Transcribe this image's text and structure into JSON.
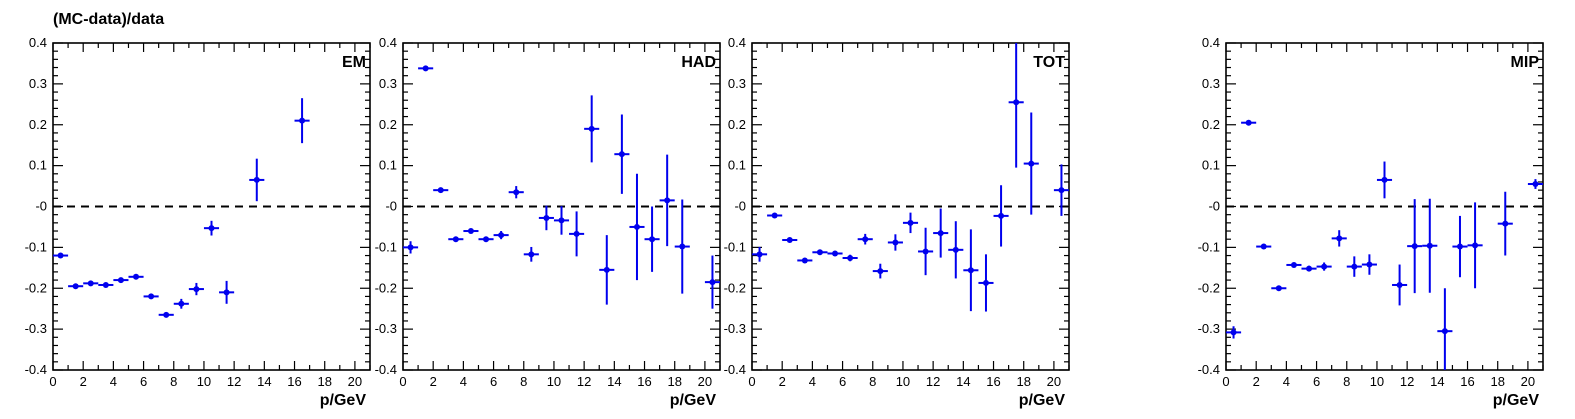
{
  "figure": {
    "ylabel": "(MC-data)/data"
  },
  "chart_data": [
    {
      "type": "scatter",
      "title": "EM",
      "xlabel": "p/GeV",
      "ylabel": "(MC-data)/data",
      "xlim": [
        0,
        21
      ],
      "ylim": [
        -0.4,
        0.4
      ],
      "xticks": [
        0,
        2,
        4,
        6,
        8,
        10,
        12,
        14,
        16,
        18,
        20
      ],
      "yticks": [
        -0.4,
        -0.3,
        -0.2,
        -0.1,
        0,
        0.1,
        0.2,
        0.3,
        0.4
      ],
      "ytick_labels": [
        "-0.4",
        "-0.3",
        "-0.2",
        "-0.1",
        "-0",
        "0.1",
        "0.2",
        "0.3",
        "0.4"
      ],
      "reference_line": 0,
      "marker_color": "#0000ee",
      "x": [
        0.5,
        1.5,
        2.5,
        3.5,
        4.5,
        5.5,
        6.5,
        7.5,
        8.5,
        9.5,
        10.5,
        11.5,
        13.5,
        16.5
      ],
      "y": [
        -0.12,
        -0.195,
        -0.188,
        -0.192,
        -0.18,
        -0.172,
        -0.22,
        -0.265,
        -0.238,
        -0.202,
        -0.053,
        -0.21,
        0.065,
        0.21
      ],
      "yerr": [
        0.005,
        0.004,
        0.004,
        0.004,
        0.004,
        0.005,
        0.006,
        0.006,
        0.012,
        0.015,
        0.018,
        0.028,
        0.052,
        0.055
      ]
    },
    {
      "type": "scatter",
      "title": "HAD",
      "xlabel": "p/GeV",
      "ylabel": "(MC-data)/data",
      "xlim": [
        0,
        21
      ],
      "ylim": [
        -0.4,
        0.4
      ],
      "xticks": [
        0,
        2,
        4,
        6,
        8,
        10,
        12,
        14,
        16,
        18,
        20
      ],
      "yticks": [
        -0.4,
        -0.3,
        -0.2,
        -0.1,
        0,
        0.1,
        0.2,
        0.3,
        0.4
      ],
      "ytick_labels": [
        "-0.4",
        "-0.3",
        "-0.2",
        "-0.1",
        "-0",
        "0.1",
        "0.2",
        "0.3",
        "0.4"
      ],
      "reference_line": 0,
      "marker_color": "#0000ee",
      "x": [
        0.5,
        1.5,
        2.5,
        3.5,
        4.5,
        5.5,
        6.5,
        7.5,
        8.5,
        9.5,
        10.5,
        11.5,
        12.5,
        13.5,
        14.5,
        15.5,
        16.5,
        17.5,
        18.5,
        20.5
      ],
      "y": [
        -0.1,
        0.338,
        0.04,
        -0.08,
        -0.06,
        -0.08,
        -0.07,
        0.035,
        -0.117,
        -0.028,
        -0.034,
        -0.067,
        0.19,
        -0.155,
        0.128,
        -0.05,
        -0.08,
        0.015,
        -0.098,
        -0.185
      ],
      "yerr": [
        0.015,
        0.004,
        0.005,
        0.005,
        0.005,
        0.006,
        0.01,
        0.015,
        0.018,
        0.03,
        0.035,
        0.055,
        0.082,
        0.085,
        0.097,
        0.13,
        0.08,
        0.112,
        0.115,
        0.065
      ]
    },
    {
      "type": "scatter",
      "title": "TOT",
      "xlabel": "p/GeV",
      "ylabel": "(MC-data)/data",
      "xlim": [
        0,
        21
      ],
      "ylim": [
        -0.4,
        0.4
      ],
      "xticks": [
        0,
        2,
        4,
        6,
        8,
        10,
        12,
        14,
        16,
        18,
        20
      ],
      "yticks": [
        -0.4,
        -0.3,
        -0.2,
        -0.1,
        0,
        0.1,
        0.2,
        0.3,
        0.4
      ],
      "ytick_labels": [
        "-0.4",
        "-0.3",
        "-0.2",
        "-0.1",
        "-0",
        "0.1",
        "0.2",
        "0.3",
        "0.4"
      ],
      "reference_line": 0,
      "marker_color": "#0000ee",
      "x": [
        0.5,
        1.5,
        2.5,
        3.5,
        4.5,
        5.5,
        6.5,
        7.5,
        8.5,
        9.5,
        10.5,
        11.5,
        12.5,
        13.5,
        14.5,
        15.5,
        16.5,
        17.5,
        18.5,
        20.5
      ],
      "y": [
        -0.117,
        -0.022,
        -0.082,
        -0.132,
        -0.112,
        -0.115,
        -0.126,
        -0.08,
        -0.158,
        -0.088,
        -0.04,
        -0.11,
        -0.065,
        -0.106,
        -0.156,
        -0.187,
        -0.023,
        0.255,
        0.105,
        0.04
      ],
      "yerr": [
        0.018,
        0.005,
        0.005,
        0.005,
        0.005,
        0.006,
        0.008,
        0.013,
        0.018,
        0.02,
        0.025,
        0.058,
        0.06,
        0.07,
        0.1,
        0.07,
        0.075,
        0.16,
        0.125,
        0.063
      ]
    },
    {
      "type": "scatter",
      "title": "MIP",
      "xlabel": "p/GeV",
      "ylabel": "(MC-data)/data",
      "xlim": [
        0,
        21
      ],
      "ylim": [
        -0.4,
        0.4
      ],
      "xticks": [
        0,
        2,
        4,
        6,
        8,
        10,
        12,
        14,
        16,
        18,
        20
      ],
      "yticks": [
        -0.4,
        -0.3,
        -0.2,
        -0.1,
        0,
        0.1,
        0.2,
        0.3,
        0.4
      ],
      "ytick_labels": [
        "-0.4",
        "-0.3",
        "-0.2",
        "-0.1",
        "-0",
        "0.1",
        "0.2",
        "0.3",
        "0.4"
      ],
      "reference_line": 0,
      "marker_color": "#0000ee",
      "x": [
        0.5,
        1.5,
        2.5,
        3.5,
        4.5,
        5.5,
        6.5,
        7.5,
        8.5,
        9.5,
        10.5,
        11.5,
        12.5,
        13.5,
        14.5,
        15.5,
        16.5,
        18.5,
        20.5
      ],
      "y": [
        -0.308,
        0.205,
        -0.098,
        -0.2,
        -0.143,
        -0.152,
        -0.147,
        -0.078,
        -0.147,
        -0.142,
        0.065,
        -0.192,
        -0.097,
        -0.096,
        -0.305,
        -0.098,
        -0.095,
        -0.042,
        0.055
      ],
      "yerr": [
        0.015,
        0.004,
        0.005,
        0.005,
        0.006,
        0.007,
        0.01,
        0.02,
        0.025,
        0.025,
        0.045,
        0.05,
        0.115,
        0.115,
        0.105,
        0.075,
        0.105,
        0.078,
        0.012
      ]
    }
  ]
}
